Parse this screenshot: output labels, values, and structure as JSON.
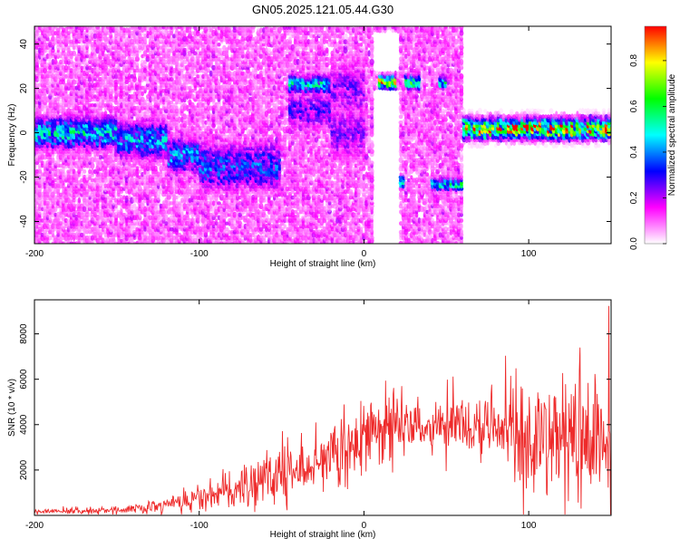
{
  "title": "GN05.2025.121.05.44.G30",
  "chart_data": [
    {
      "type": "heatmap",
      "xlabel": "Height of straight line (km)",
      "ylabel": "Frequency (Hz)",
      "xlim": [
        -200,
        150
      ],
      "ylim": [
        -50,
        48
      ],
      "xticks": [
        "-200",
        "-100",
        "0",
        "100"
      ],
      "yticks": [
        "-40",
        "-20",
        "0",
        "20",
        "40"
      ],
      "colorbar": {
        "label": "Normalized spectral amplitude",
        "range": [
          0,
          0.95
        ],
        "ticks": [
          "0.0",
          "0.2",
          "0.4",
          "0.6",
          "0.8"
        ],
        "colors": [
          "#ffffff",
          "#ff00ff",
          "#0000ff",
          "#00ffff",
          "#00ff00",
          "#ffff00",
          "#ff0000"
        ]
      },
      "grid": false
    },
    {
      "type": "line",
      "xlabel": "Height of straight line (km)",
      "ylabel": "SNR (10 * v/v)",
      "xlim": [
        -200,
        150
      ],
      "ylim": [
        0,
        9500
      ],
      "xticks": [
        "-200",
        "-100",
        "0",
        "100"
      ],
      "yticks": [
        "2000",
        "4000",
        "6000",
        "8000"
      ],
      "line_color": "#ee2a2a",
      "envelope": {
        "x": [
          -200,
          -150,
          -125,
          -100,
          -75,
          -50,
          -30,
          -20,
          0,
          20,
          50,
          80,
          100,
          120,
          150
        ],
        "median": [
          150,
          230,
          400,
          700,
          1200,
          1800,
          2300,
          2700,
          3600,
          3900,
          4100,
          3700,
          3300,
          3200,
          3200
        ],
        "spread": [
          120,
          150,
          300,
          500,
          800,
          1100,
          1300,
          1500,
          1400,
          1300,
          1100,
          1700,
          2900,
          3000,
          3000
        ]
      },
      "grid": false
    }
  ]
}
